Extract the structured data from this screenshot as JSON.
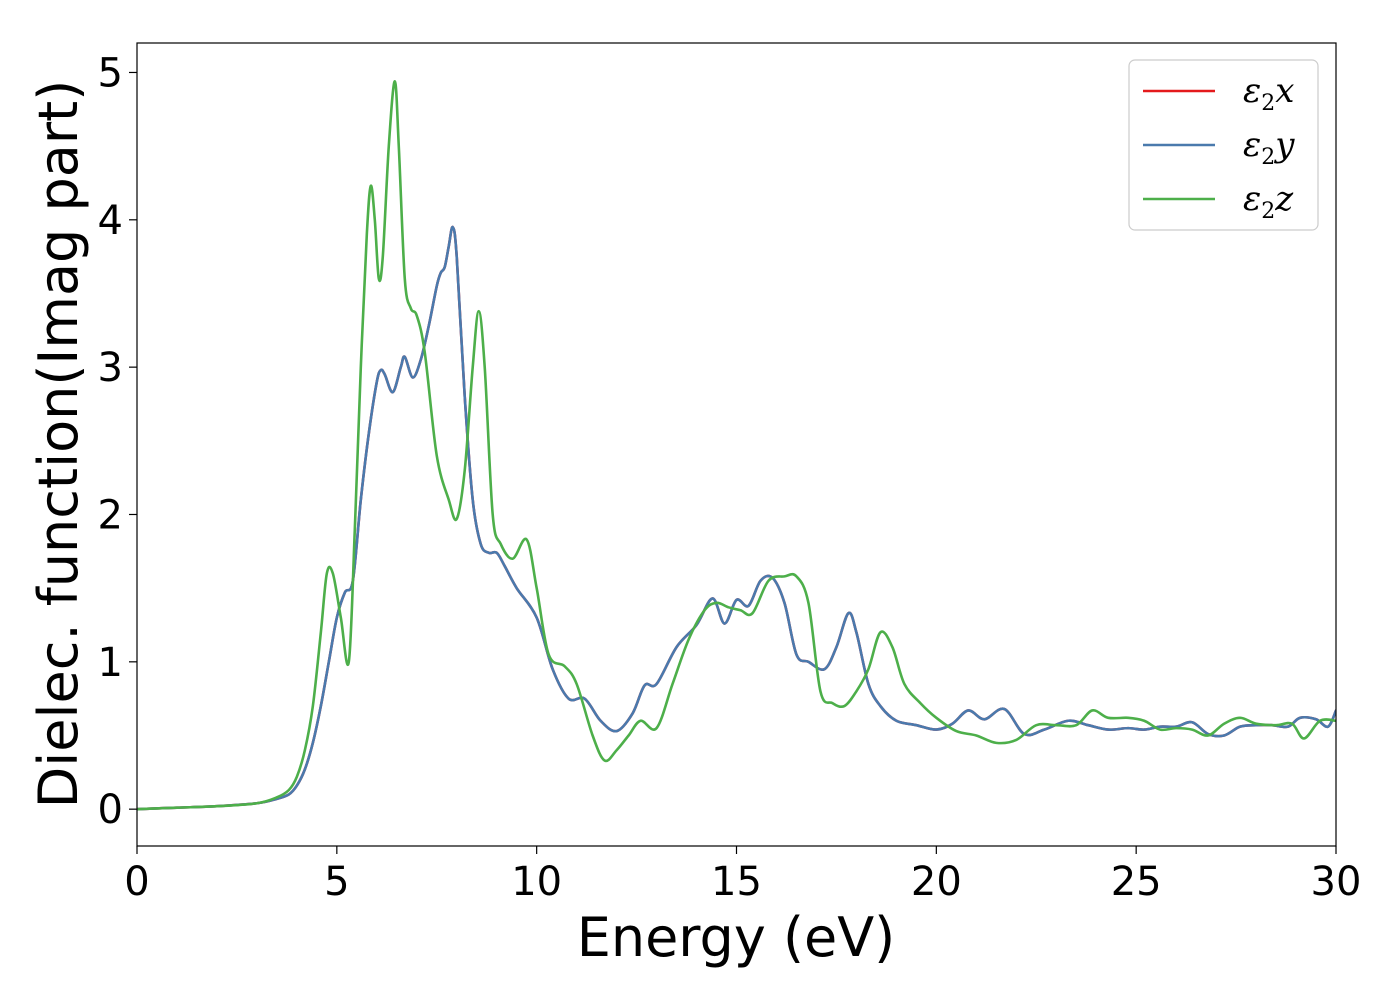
{
  "chart_data": {
    "type": "line",
    "title": "",
    "xlabel": "Energy (eV)",
    "ylabel": "Dielec. function(Imag part)",
    "xlim": [
      0,
      30
    ],
    "ylim": [
      -0.25,
      5.2
    ],
    "xticks": [
      0,
      5,
      10,
      15,
      20,
      25,
      30
    ],
    "yticks": [
      0,
      1,
      2,
      3,
      4,
      5
    ],
    "grid": false,
    "legend_position": "top-right",
    "series": [
      {
        "name": "ε2x",
        "legend": {
          "base": "ε",
          "sub": "2",
          "suffix": "x"
        },
        "color": "#e41a1c",
        "x": [
          0,
          1,
          2,
          3,
          3.5,
          3.8,
          4.0,
          4.2,
          4.4,
          4.6,
          4.8,
          5.0,
          5.2,
          5.4,
          5.6,
          5.8,
          6.0,
          6.1,
          6.2,
          6.4,
          6.6,
          6.7,
          6.9,
          7.1,
          7.3,
          7.5,
          7.6,
          7.7,
          7.8,
          7.9,
          8.0,
          8.2,
          8.4,
          8.6,
          8.8,
          9.0,
          9.2,
          9.5,
          10.0,
          10.4,
          10.8,
          11.2,
          11.6,
          12.0,
          12.4,
          12.7,
          13.0,
          13.5,
          14.0,
          14.4,
          14.7,
          15.0,
          15.3,
          15.6,
          15.9,
          16.2,
          16.5,
          16.8,
          17.2,
          17.5,
          17.8,
          18.0,
          18.3,
          18.6,
          19.0,
          19.5,
          20.0,
          20.4,
          20.8,
          21.2,
          21.7,
          22.2,
          22.7,
          23.3,
          23.8,
          24.3,
          24.8,
          25.2,
          25.6,
          26.0,
          26.4,
          26.8,
          27.2,
          27.6,
          28.0,
          28.4,
          28.8,
          29.1,
          29.5,
          29.8,
          30.0
        ],
        "values": [
          0.0,
          0.01,
          0.02,
          0.04,
          0.07,
          0.1,
          0.16,
          0.27,
          0.45,
          0.7,
          1.0,
          1.3,
          1.47,
          1.55,
          2.1,
          2.55,
          2.9,
          2.98,
          2.95,
          2.83,
          3.0,
          3.07,
          2.93,
          3.05,
          3.28,
          3.55,
          3.64,
          3.68,
          3.82,
          3.95,
          3.75,
          2.8,
          2.1,
          1.8,
          1.74,
          1.74,
          1.65,
          1.5,
          1.3,
          0.95,
          0.75,
          0.75,
          0.6,
          0.53,
          0.65,
          0.84,
          0.85,
          1.1,
          1.25,
          1.43,
          1.26,
          1.42,
          1.38,
          1.55,
          1.57,
          1.4,
          1.05,
          1.0,
          0.95,
          1.1,
          1.33,
          1.2,
          0.85,
          0.7,
          0.6,
          0.57,
          0.54,
          0.58,
          0.67,
          0.61,
          0.68,
          0.51,
          0.54,
          0.6,
          0.57,
          0.54,
          0.55,
          0.54,
          0.56,
          0.56,
          0.59,
          0.51,
          0.5,
          0.56,
          0.57,
          0.57,
          0.56,
          0.62,
          0.61,
          0.56,
          0.67
        ]
      },
      {
        "name": "ε2y",
        "legend": {
          "base": "ε",
          "sub": "2",
          "suffix": "y"
        },
        "color": "#4a7aad",
        "x": [
          0,
          1,
          2,
          3,
          3.5,
          3.8,
          4.0,
          4.2,
          4.4,
          4.6,
          4.8,
          5.0,
          5.2,
          5.4,
          5.6,
          5.8,
          6.0,
          6.1,
          6.2,
          6.4,
          6.6,
          6.7,
          6.9,
          7.1,
          7.3,
          7.5,
          7.6,
          7.7,
          7.8,
          7.9,
          8.0,
          8.2,
          8.4,
          8.6,
          8.8,
          9.0,
          9.2,
          9.5,
          10.0,
          10.4,
          10.8,
          11.2,
          11.6,
          12.0,
          12.4,
          12.7,
          13.0,
          13.5,
          14.0,
          14.4,
          14.7,
          15.0,
          15.3,
          15.6,
          15.9,
          16.2,
          16.5,
          16.8,
          17.2,
          17.5,
          17.8,
          18.0,
          18.3,
          18.6,
          19.0,
          19.5,
          20.0,
          20.4,
          20.8,
          21.2,
          21.7,
          22.2,
          22.7,
          23.3,
          23.8,
          24.3,
          24.8,
          25.2,
          25.6,
          26.0,
          26.4,
          26.8,
          27.2,
          27.6,
          28.0,
          28.4,
          28.8,
          29.1,
          29.5,
          29.8,
          30.0
        ],
        "values": [
          0.0,
          0.01,
          0.02,
          0.04,
          0.07,
          0.1,
          0.16,
          0.27,
          0.45,
          0.7,
          1.0,
          1.3,
          1.47,
          1.55,
          2.1,
          2.55,
          2.9,
          2.98,
          2.95,
          2.83,
          3.0,
          3.07,
          2.93,
          3.05,
          3.28,
          3.55,
          3.64,
          3.68,
          3.82,
          3.95,
          3.75,
          2.8,
          2.1,
          1.8,
          1.74,
          1.74,
          1.65,
          1.5,
          1.3,
          0.95,
          0.75,
          0.75,
          0.6,
          0.53,
          0.65,
          0.84,
          0.85,
          1.1,
          1.25,
          1.43,
          1.26,
          1.42,
          1.38,
          1.55,
          1.57,
          1.4,
          1.05,
          1.0,
          0.95,
          1.1,
          1.33,
          1.2,
          0.85,
          0.7,
          0.6,
          0.57,
          0.54,
          0.58,
          0.67,
          0.61,
          0.68,
          0.51,
          0.54,
          0.6,
          0.57,
          0.54,
          0.55,
          0.54,
          0.56,
          0.56,
          0.59,
          0.51,
          0.5,
          0.56,
          0.57,
          0.57,
          0.56,
          0.62,
          0.61,
          0.56,
          0.67
        ]
      },
      {
        "name": "ε2z",
        "legend": {
          "base": "ε",
          "sub": "2",
          "suffix": "z"
        },
        "color": "#4daf4a",
        "x": [
          0,
          1,
          2,
          3,
          3.5,
          3.8,
          4.0,
          4.2,
          4.4,
          4.6,
          4.75,
          4.9,
          5.1,
          5.3,
          5.45,
          5.6,
          5.75,
          5.85,
          5.95,
          6.05,
          6.15,
          6.3,
          6.45,
          6.55,
          6.7,
          6.85,
          7.0,
          7.2,
          7.5,
          7.8,
          8.0,
          8.2,
          8.4,
          8.55,
          8.7,
          8.9,
          9.1,
          9.4,
          9.75,
          10.0,
          10.3,
          10.7,
          11.0,
          11.4,
          11.7,
          12.0,
          12.3,
          12.6,
          13.0,
          13.4,
          13.8,
          14.2,
          14.5,
          14.8,
          15.1,
          15.4,
          15.8,
          16.2,
          16.5,
          16.8,
          17.1,
          17.4,
          17.7,
          18.0,
          18.3,
          18.6,
          18.9,
          19.2,
          19.6,
          20.0,
          20.5,
          21.0,
          21.5,
          22.0,
          22.5,
          23.0,
          23.5,
          23.9,
          24.3,
          24.8,
          25.2,
          25.6,
          26.0,
          26.4,
          26.8,
          27.2,
          27.6,
          28.0,
          28.5,
          28.9,
          29.2,
          29.6,
          30.0
        ],
        "values": [
          0.0,
          0.01,
          0.02,
          0.04,
          0.08,
          0.13,
          0.22,
          0.4,
          0.7,
          1.2,
          1.6,
          1.6,
          1.3,
          1.0,
          1.9,
          3.0,
          3.9,
          4.23,
          4.0,
          3.6,
          3.75,
          4.5,
          4.94,
          4.5,
          3.6,
          3.4,
          3.35,
          3.1,
          2.4,
          2.1,
          1.97,
          2.3,
          3.0,
          3.38,
          3.0,
          2.0,
          1.8,
          1.7,
          1.83,
          1.5,
          1.05,
          0.97,
          0.85,
          0.5,
          0.33,
          0.4,
          0.5,
          0.6,
          0.55,
          0.85,
          1.15,
          1.35,
          1.4,
          1.37,
          1.35,
          1.33,
          1.55,
          1.58,
          1.58,
          1.4,
          0.8,
          0.72,
          0.7,
          0.8,
          0.95,
          1.2,
          1.1,
          0.85,
          0.72,
          0.62,
          0.53,
          0.5,
          0.45,
          0.47,
          0.57,
          0.57,
          0.57,
          0.67,
          0.62,
          0.62,
          0.6,
          0.54,
          0.55,
          0.54,
          0.5,
          0.58,
          0.62,
          0.58,
          0.57,
          0.58,
          0.48,
          0.6,
          0.6
        ]
      }
    ]
  }
}
